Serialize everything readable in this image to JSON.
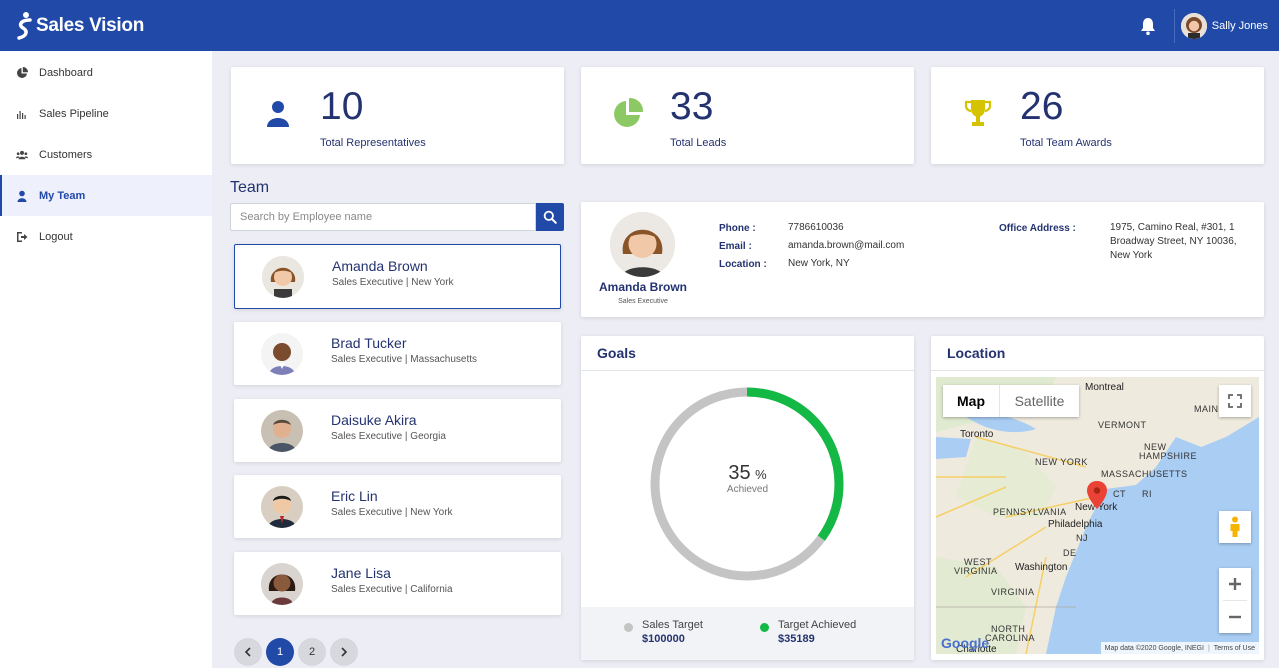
{
  "app": {
    "name": "Sales Vision"
  },
  "header": {
    "user_name": "Sally Jones"
  },
  "sidebar": {
    "items": [
      {
        "label": "Dashboard",
        "icon": "pie-chart-icon"
      },
      {
        "label": "Sales Pipeline",
        "icon": "bar-chart-icon"
      },
      {
        "label": "Customers",
        "icon": "users-icon"
      },
      {
        "label": "My Team",
        "icon": "user-icon"
      },
      {
        "label": "Logout",
        "icon": "logout-icon"
      }
    ],
    "active": "My Team"
  },
  "stats": [
    {
      "value": "10",
      "label": "Total Representatives",
      "icon": "user-icon",
      "color": "#2149a8"
    },
    {
      "value": "33",
      "label": "Total Leads",
      "icon": "pie-chart-icon",
      "color": "#8cc965"
    },
    {
      "value": "26",
      "label": "Total Team Awards",
      "icon": "trophy-icon",
      "color": "#d6c300"
    }
  ],
  "team": {
    "title": "Team",
    "search_placeholder": "Search by Employee name",
    "employees": [
      {
        "name": "Amanda Brown",
        "desc": "Sales Executive | New York"
      },
      {
        "name": "Brad Tucker",
        "desc": "Sales Executive | Massachusetts"
      },
      {
        "name": "Daisuke Akira",
        "desc": "Sales Executive | Georgia"
      },
      {
        "name": "Eric Lin",
        "desc": "Sales Executive | New York"
      },
      {
        "name": "Jane Lisa",
        "desc": "Sales Executive | California"
      }
    ],
    "pages": [
      "1",
      "2"
    ],
    "current_page": "1"
  },
  "profile": {
    "name": "Amanda Brown",
    "role": "Sales Executive",
    "phone_label": "Phone :",
    "phone": "7786610036",
    "email_label": "Email :",
    "email": "amanda.brown@mail.com",
    "location_label": "Location :",
    "location": "New York, NY",
    "address_label": "Office Address :",
    "address": "1975, Camino Real, #301, 1 Broadway Street, NY 10036, New York"
  },
  "goals": {
    "title": "Goals",
    "percent": "35",
    "percent_unit": "%",
    "achieved_label": "Achieved",
    "achieved_fraction": 0.35,
    "target_label": "Sales Target",
    "target_value": "$100000",
    "achieved_target_label": "Target Achieved",
    "achieved_value": "$35189",
    "colors": {
      "target": "#c4c4c4",
      "achieved": "#13b845"
    }
  },
  "location_panel": {
    "title": "Location",
    "map_tab": "Map",
    "satellite_tab": "Satellite",
    "labels": {
      "montreal": "Montreal",
      "maine": "MAINE",
      "toronto": "Toronto",
      "vermont": "VERMONT",
      "new_hampshire_1": "NEW",
      "new_hampshire_2": "HAMPSHIRE",
      "new_york_state": "NEW YORK",
      "massachusetts": "MASSACHUSETTS",
      "ct": "CT",
      "ri": "RI",
      "pennsylvania": "PENNSYLVANIA",
      "new_york_city": "New York",
      "philadelphia": "Philadelphia",
      "nj": "NJ",
      "west_virginia_1": "WEST",
      "west_virginia_2": "VIRGINIA",
      "washington": "Washington",
      "de": "DE",
      "virginia": "VIRGINIA",
      "north_carolina_1": "NORTH",
      "north_carolina_2": "CAROLINA",
      "charlotte": "Charlotte"
    },
    "attribution": "Map data ©2020 Google, INEGI",
    "terms": "Terms of Use",
    "google": "Google"
  }
}
